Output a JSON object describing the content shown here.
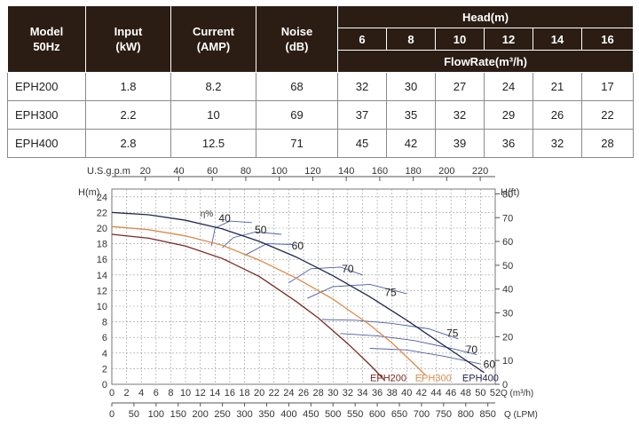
{
  "table": {
    "headers": {
      "model": "Model\n50Hz",
      "input": "Input\n(kW)",
      "current": "Current\n(AMP)",
      "noise": "Noise\n(dB)",
      "head": "Head(m)",
      "flowrate": "FlowRate(m³/h)"
    },
    "head_values": [
      "6",
      "8",
      "10",
      "12",
      "14",
      "16"
    ],
    "rows": [
      {
        "model": "EPH200",
        "input": "1.8",
        "current": "8.2",
        "noise": "68",
        "flows": [
          "32",
          "30",
          "27",
          "24",
          "21",
          "17"
        ]
      },
      {
        "model": "EPH300",
        "input": "2.2",
        "current": "10",
        "noise": "69",
        "flows": [
          "37",
          "35",
          "32",
          "29",
          "26",
          "22"
        ]
      },
      {
        "model": "EPH400",
        "input": "2.8",
        "current": "12.5",
        "noise": "71",
        "flows": [
          "45",
          "42",
          "39",
          "36",
          "32",
          "28"
        ]
      }
    ]
  },
  "chart_data": {
    "type": "line",
    "axes": {
      "left_label": "H(m)",
      "right_label": "H(ft)",
      "top_label": "U.S.g.p.m",
      "bottom_label": "Q (m³/h)",
      "bottom2_label": "Q (LPM)",
      "x_range": [
        0,
        52
      ],
      "y_range": [
        0,
        25
      ],
      "bottom_ticks": [
        "0",
        "2",
        "4",
        "6",
        "8",
        "10",
        "12",
        "14",
        "16",
        "18",
        "20",
        "22",
        "24",
        "26",
        "28",
        "30",
        "32",
        "34",
        "36",
        "38",
        "40",
        "42",
        "44",
        "46",
        "48",
        "50",
        "52"
      ],
      "lpm_ticks": [
        "0",
        "50",
        "100",
        "150",
        "200",
        "250",
        "300",
        "350",
        "400",
        "450",
        "500",
        "550",
        "600",
        "650",
        "700",
        "750",
        "800",
        "850"
      ],
      "top_ticks": [
        "20",
        "40",
        "60",
        "80",
        "100",
        "120",
        "140",
        "160",
        "180",
        "200",
        "220"
      ],
      "left_ticks": [
        "0",
        "2",
        "4",
        "6",
        "8",
        "10",
        "12",
        "14",
        "16",
        "18",
        "20",
        "22",
        "24"
      ],
      "right_ticks": [
        "0",
        "10",
        "20",
        "30",
        "40",
        "50",
        "60",
        "70",
        "80"
      ]
    },
    "series": [
      {
        "name": "EPH200",
        "color": "#7a2a22",
        "x": [
          0,
          5,
          10,
          15,
          20,
          25,
          28,
          32,
          35,
          37
        ],
        "y": [
          19.2,
          18.7,
          17.7,
          16.1,
          13.8,
          10.6,
          8.5,
          5.2,
          2.5,
          0.5
        ]
      },
      {
        "name": "EPH300",
        "color": "#d98c4a",
        "x": [
          0,
          5,
          10,
          15,
          20,
          25,
          30,
          35,
          38,
          41,
          42.5
        ],
        "y": [
          20.2,
          19.8,
          19,
          17.8,
          15.9,
          13.6,
          10.9,
          7.6,
          5.3,
          2.6,
          1.2
        ]
      },
      {
        "name": "EPH400",
        "color": "#22284e",
        "x": [
          0,
          5,
          10,
          15,
          20,
          25,
          30,
          35,
          40,
          45,
          50.5
        ],
        "y": [
          22,
          21.7,
          21,
          19.9,
          18.3,
          16.3,
          13.9,
          11.2,
          8.2,
          5,
          1.5
        ]
      }
    ],
    "efficiency_label": "η%",
    "efficiency_labels": [
      {
        "text": "40",
        "x": 15.3,
        "y": 20.8
      },
      {
        "text": "50",
        "x": 20.2,
        "y": 19.3
      },
      {
        "text": "60",
        "x": 25.2,
        "y": 17.3
      },
      {
        "text": "70",
        "x": 32,
        "y": 14.3
      },
      {
        "text": "75",
        "x": 37.8,
        "y": 11.3
      },
      {
        "text": "75",
        "x": 46.2,
        "y": 6.1
      },
      {
        "text": "70",
        "x": 48.8,
        "y": 4.0
      },
      {
        "text": "60",
        "x": 51.2,
        "y": 2.1
      }
    ]
  }
}
